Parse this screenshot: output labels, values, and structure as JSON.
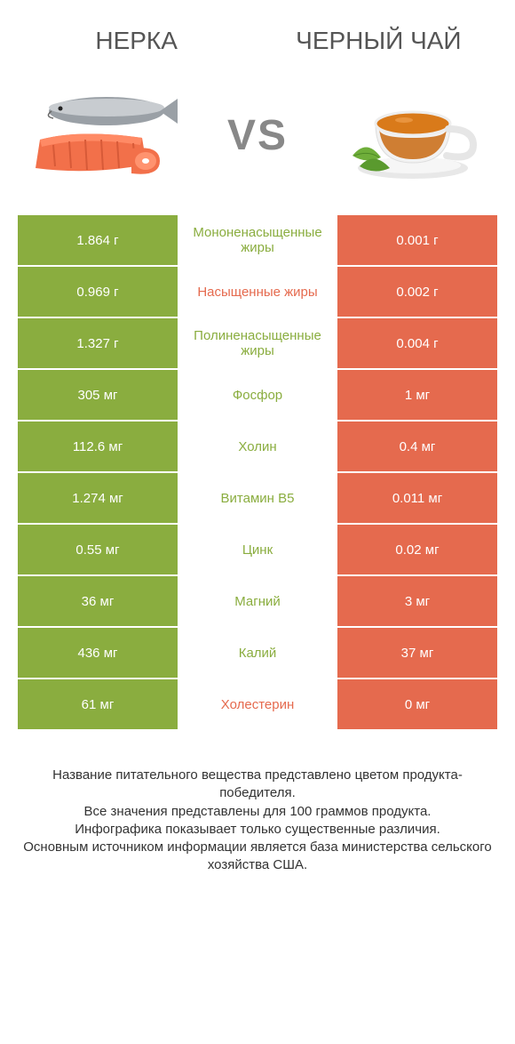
{
  "colors": {
    "green": "#8aad3f",
    "orange": "#e56a4e",
    "white": "#ffffff",
    "header_text": "#555555",
    "vs_text": "#888888",
    "footer_text": "#333333"
  },
  "header": {
    "left_title": "НЕРКА",
    "right_title": "ЧЕРНЫЙ ЧАЙ",
    "vs_label": "VS"
  },
  "table": {
    "rows": [
      {
        "left": "1.864 г",
        "mid": "Мононенасыщенные жиры",
        "right": "0.001 г",
        "winner": "left"
      },
      {
        "left": "0.969 г",
        "mid": "Насыщенные жиры",
        "right": "0.002 г",
        "winner": "right"
      },
      {
        "left": "1.327 г",
        "mid": "Полиненасыщенные жиры",
        "right": "0.004 г",
        "winner": "left"
      },
      {
        "left": "305 мг",
        "mid": "Фосфор",
        "right": "1 мг",
        "winner": "left"
      },
      {
        "left": "112.6 мг",
        "mid": "Холин",
        "right": "0.4 мг",
        "winner": "left"
      },
      {
        "left": "1.274 мг",
        "mid": "Витамин B5",
        "right": "0.011 мг",
        "winner": "left"
      },
      {
        "left": "0.55 мг",
        "mid": "Цинк",
        "right": "0.02 мг",
        "winner": "left"
      },
      {
        "left": "36 мг",
        "mid": "Магний",
        "right": "3 мг",
        "winner": "left"
      },
      {
        "left": "436 мг",
        "mid": "Калий",
        "right": "37 мг",
        "winner": "left"
      },
      {
        "left": "61 мг",
        "mid": "Холестерин",
        "right": "0 мг",
        "winner": "right"
      }
    ]
  },
  "footer": {
    "line1": "Название питательного вещества представлено цветом продукта-победителя.",
    "line2": "Все значения представлены для 100 граммов продукта.",
    "line3": "Инфографика показывает только существенные различия.",
    "line4": "Основным источником информации является база министерства сельского хозяйства США."
  },
  "fonts": {
    "header_title_size": 28,
    "vs_size": 48,
    "cell_size": 15,
    "footer_size": 15
  }
}
